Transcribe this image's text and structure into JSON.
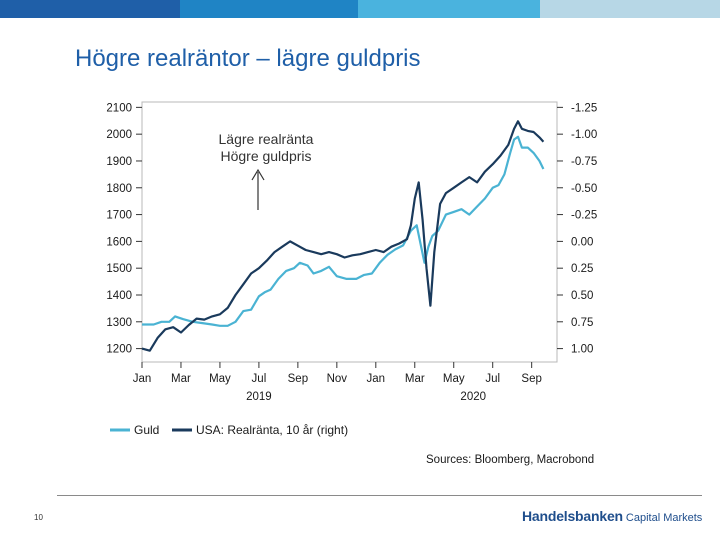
{
  "header_bar": {
    "colors": [
      "#1f5fa8",
      "#1f84c5",
      "#4ab3de",
      "#b7d7e6"
    ]
  },
  "slide": {
    "title": "Högre realräntor – lägre guldpris",
    "page_number": "10",
    "sources": "Sources: Bloomberg, Macrobond",
    "brand_name": "Handelsbanken",
    "brand_unit": "Capital Markets"
  },
  "chart_data": {
    "type": "line",
    "title": "",
    "annotation": [
      "Lägre realränta",
      "Högre guldpris"
    ],
    "annotation_arrow": "up",
    "x_ticks": [
      "Jan",
      "Mar",
      "May",
      "Jul",
      "Sep",
      "Nov",
      "Jan",
      "Mar",
      "May",
      "Jul",
      "Sep"
    ],
    "x_tick_months": [
      0,
      2,
      4,
      6,
      8,
      10,
      12,
      14,
      16,
      18,
      20
    ],
    "year_labels": [
      {
        "label": "2019",
        "month": 6
      },
      {
        "label": "2020",
        "month": 17
      }
    ],
    "xlim_months": [
      0,
      21.3
    ],
    "y_left": {
      "ticks": [
        "2100",
        "2000",
        "1900",
        "1800",
        "1700",
        "1600",
        "1500",
        "1400",
        "1300",
        "1200"
      ],
      "tick_values": [
        2100,
        2000,
        1900,
        1800,
        1700,
        1600,
        1500,
        1400,
        1300,
        1200
      ],
      "range": [
        1150,
        2120
      ]
    },
    "y_right": {
      "ticks": [
        "-1.25",
        "-1.00",
        "-0.75",
        "-0.50",
        "-0.25",
        "0.00",
        "0.25",
        "0.50",
        "0.75",
        "1.00"
      ],
      "tick_values": [
        -1.25,
        -1.0,
        -0.75,
        -0.5,
        -0.25,
        0.0,
        0.25,
        0.5,
        0.75,
        1.0
      ],
      "inverted": true
    },
    "series": [
      {
        "name": "Guld",
        "axis": "left",
        "color": "#4ab3d3",
        "points": [
          [
            0,
            1290
          ],
          [
            0.6,
            1290
          ],
          [
            1,
            1300
          ],
          [
            1.4,
            1300
          ],
          [
            1.7,
            1320
          ],
          [
            2.1,
            1310
          ],
          [
            2.6,
            1300
          ],
          [
            3.1,
            1295
          ],
          [
            3.6,
            1290
          ],
          [
            4,
            1285
          ],
          [
            4.4,
            1285
          ],
          [
            4.8,
            1300
          ],
          [
            5.2,
            1340
          ],
          [
            5.6,
            1345
          ],
          [
            6,
            1395
          ],
          [
            6.3,
            1410
          ],
          [
            6.6,
            1420
          ],
          [
            7,
            1460
          ],
          [
            7.4,
            1490
          ],
          [
            7.8,
            1500
          ],
          [
            8.1,
            1520
          ],
          [
            8.5,
            1510
          ],
          [
            8.8,
            1480
          ],
          [
            9.2,
            1490
          ],
          [
            9.6,
            1505
          ],
          [
            10,
            1470
          ],
          [
            10.5,
            1460
          ],
          [
            11,
            1460
          ],
          [
            11.4,
            1475
          ],
          [
            11.8,
            1480
          ],
          [
            12.2,
            1520
          ],
          [
            12.6,
            1550
          ],
          [
            13,
            1570
          ],
          [
            13.4,
            1585
          ],
          [
            13.8,
            1640
          ],
          [
            14.1,
            1660
          ],
          [
            14.3,
            1590
          ],
          [
            14.5,
            1520
          ],
          [
            14.7,
            1580
          ],
          [
            14.9,
            1620
          ],
          [
            15.2,
            1640
          ],
          [
            15.6,
            1700
          ],
          [
            16,
            1710
          ],
          [
            16.4,
            1720
          ],
          [
            16.8,
            1700
          ],
          [
            17.2,
            1730
          ],
          [
            17.6,
            1760
          ],
          [
            18,
            1800
          ],
          [
            18.3,
            1810
          ],
          [
            18.6,
            1850
          ],
          [
            18.9,
            1930
          ],
          [
            19.1,
            1980
          ],
          [
            19.3,
            1990
          ],
          [
            19.5,
            1950
          ],
          [
            19.8,
            1950
          ],
          [
            20.1,
            1930
          ],
          [
            20.4,
            1900
          ],
          [
            20.6,
            1870
          ]
        ]
      },
      {
        "name": "USA: Realränta, 10 år (right)",
        "axis": "right",
        "color": "#1a3a5c",
        "points": [
          [
            0,
            1.0
          ],
          [
            0.4,
            1.02
          ],
          [
            0.8,
            0.9
          ],
          [
            1.2,
            0.82
          ],
          [
            1.6,
            0.8
          ],
          [
            2,
            0.85
          ],
          [
            2.4,
            0.78
          ],
          [
            2.8,
            0.72
          ],
          [
            3.2,
            0.73
          ],
          [
            3.6,
            0.7
          ],
          [
            4,
            0.68
          ],
          [
            4.4,
            0.62
          ],
          [
            4.8,
            0.5
          ],
          [
            5.2,
            0.4
          ],
          [
            5.6,
            0.3
          ],
          [
            6,
            0.25
          ],
          [
            6.4,
            0.18
          ],
          [
            6.8,
            0.1
          ],
          [
            7.2,
            0.05
          ],
          [
            7.6,
            0.0
          ],
          [
            8,
            0.04
          ],
          [
            8.4,
            0.08
          ],
          [
            8.8,
            0.1
          ],
          [
            9.2,
            0.12
          ],
          [
            9.6,
            0.1
          ],
          [
            10,
            0.12
          ],
          [
            10.4,
            0.15
          ],
          [
            10.8,
            0.13
          ],
          [
            11.2,
            0.12
          ],
          [
            11.6,
            0.1
          ],
          [
            12,
            0.08
          ],
          [
            12.4,
            0.1
          ],
          [
            12.8,
            0.05
          ],
          [
            13.2,
            0.02
          ],
          [
            13.6,
            -0.02
          ],
          [
            13.8,
            -0.15
          ],
          [
            14,
            -0.4
          ],
          [
            14.2,
            -0.55
          ],
          [
            14.4,
            -0.2
          ],
          [
            14.6,
            0.25
          ],
          [
            14.8,
            0.6
          ],
          [
            15,
            0.1
          ],
          [
            15.3,
            -0.35
          ],
          [
            15.6,
            -0.45
          ],
          [
            16,
            -0.5
          ],
          [
            16.4,
            -0.55
          ],
          [
            16.8,
            -0.6
          ],
          [
            17.2,
            -0.55
          ],
          [
            17.6,
            -0.65
          ],
          [
            18,
            -0.72
          ],
          [
            18.4,
            -0.8
          ],
          [
            18.8,
            -0.9
          ],
          [
            19.1,
            -1.05
          ],
          [
            19.3,
            -1.12
          ],
          [
            19.5,
            -1.05
          ],
          [
            19.8,
            -1.03
          ],
          [
            20.1,
            -1.02
          ],
          [
            20.4,
            -0.97
          ],
          [
            20.6,
            -0.93
          ]
        ]
      }
    ]
  }
}
